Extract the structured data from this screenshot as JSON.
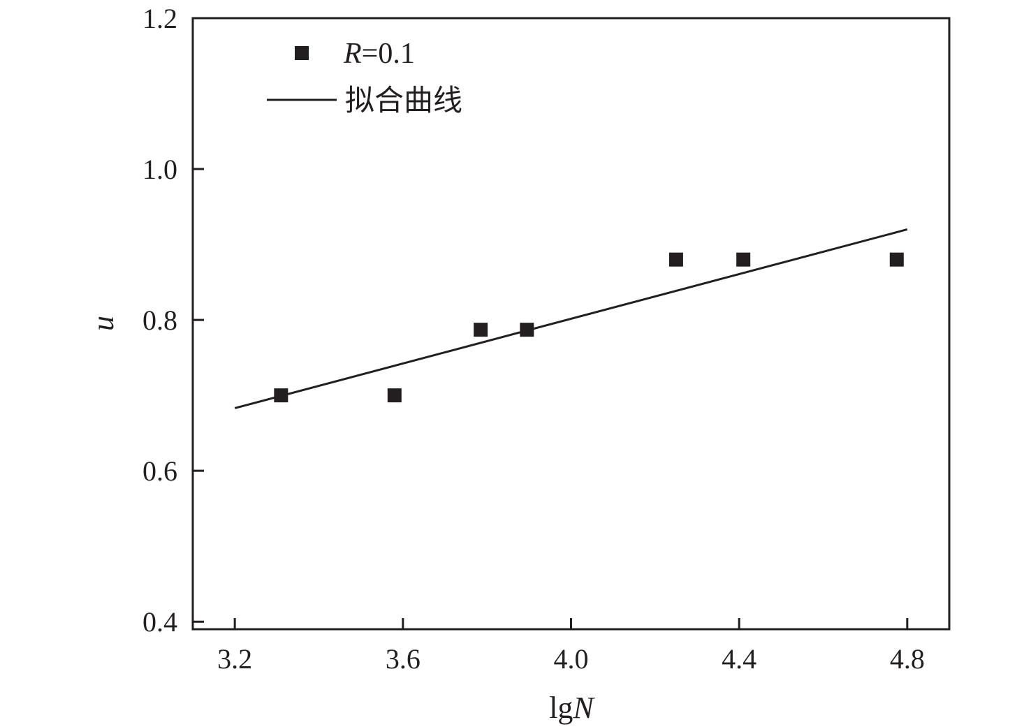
{
  "chart_data": {
    "type": "scatter",
    "xlabel_prefix": "lg",
    "xlabel_var": "N",
    "ylabel": "u",
    "xlim": [
      3.1,
      4.9
    ],
    "ylim": [
      0.39,
      1.2
    ],
    "xticks": [
      3.2,
      3.6,
      4.0,
      4.4,
      4.8
    ],
    "xtick_labels": [
      "3.2",
      "3.6",
      "4.0",
      "4.4",
      "4.8"
    ],
    "yticks": [
      0.4,
      0.6,
      0.8,
      1.0,
      1.2
    ],
    "ytick_labels": [
      "0.4",
      "0.6",
      "0.8",
      "1.0",
      "1.2"
    ],
    "grid": false,
    "legend_position": "top-left",
    "series": [
      {
        "name": "R=0.1",
        "name_var": "R",
        "name_rest": "=0.1",
        "kind": "scatter",
        "marker": "square",
        "color": "#231f20",
        "x": [
          3.31,
          3.58,
          3.785,
          3.895,
          4.25,
          4.41,
          4.775
        ],
        "y": [
          0.7,
          0.7,
          0.787,
          0.787,
          0.88,
          0.88,
          0.88
        ]
      },
      {
        "name": "拟合曲线",
        "kind": "line",
        "color": "#231f20",
        "x": [
          3.2,
          4.8
        ],
        "y": [
          0.683,
          0.92
        ]
      }
    ]
  }
}
